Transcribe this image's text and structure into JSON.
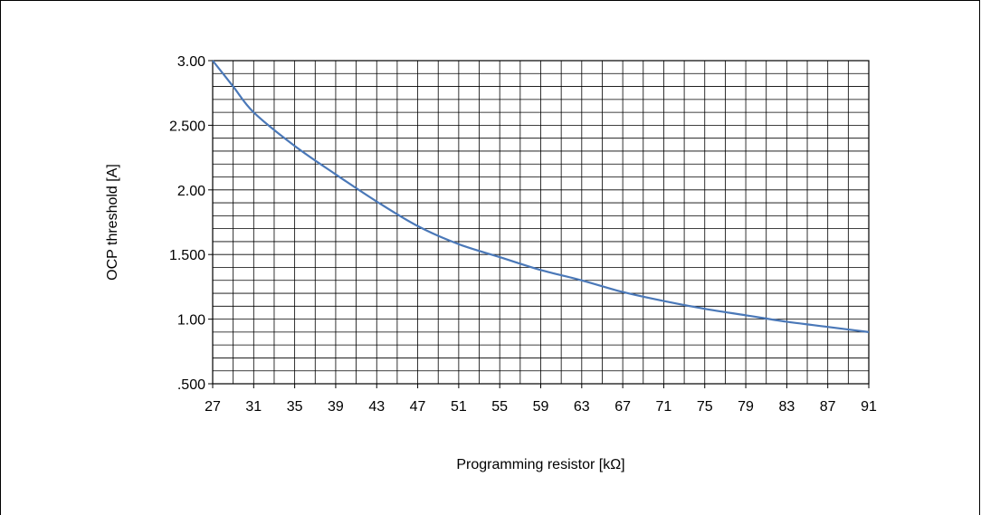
{
  "chart_data": {
    "type": "line",
    "title": "",
    "xlabel": "Programming resistor [kΩ]",
    "ylabel": "OCP threshold [A]",
    "xlim": [
      27,
      91
    ],
    "ylim": [
      0.5,
      3.0
    ],
    "x_ticks": [
      "27",
      "31",
      "35",
      "39",
      "43",
      "47",
      "51",
      "55",
      "59",
      "63",
      "67",
      "71",
      "75",
      "79",
      "83",
      "87",
      "91"
    ],
    "y_ticks": [
      {
        "value": 0.5,
        "label": ".500"
      },
      {
        "value": 1.0,
        "label": "1.00"
      },
      {
        "value": 1.5,
        "label": "1.500"
      },
      {
        "value": 2.0,
        "label": "2.00"
      },
      {
        "value": 2.5,
        "label": "2.500"
      },
      {
        "value": 3.0,
        "label": "3.00"
      }
    ],
    "grid": true,
    "line_color": "#4a78b8",
    "series": [
      {
        "x": [
          27,
          29,
          31,
          35,
          39,
          43,
          47,
          51,
          55,
          59,
          63,
          67,
          71,
          75,
          79,
          83,
          87,
          91
        ],
        "y": [
          3.0,
          2.8,
          2.6,
          2.34,
          2.12,
          1.91,
          1.72,
          1.58,
          1.48,
          1.38,
          1.3,
          1.21,
          1.14,
          1.08,
          1.03,
          0.98,
          0.94,
          0.9
        ]
      }
    ]
  }
}
